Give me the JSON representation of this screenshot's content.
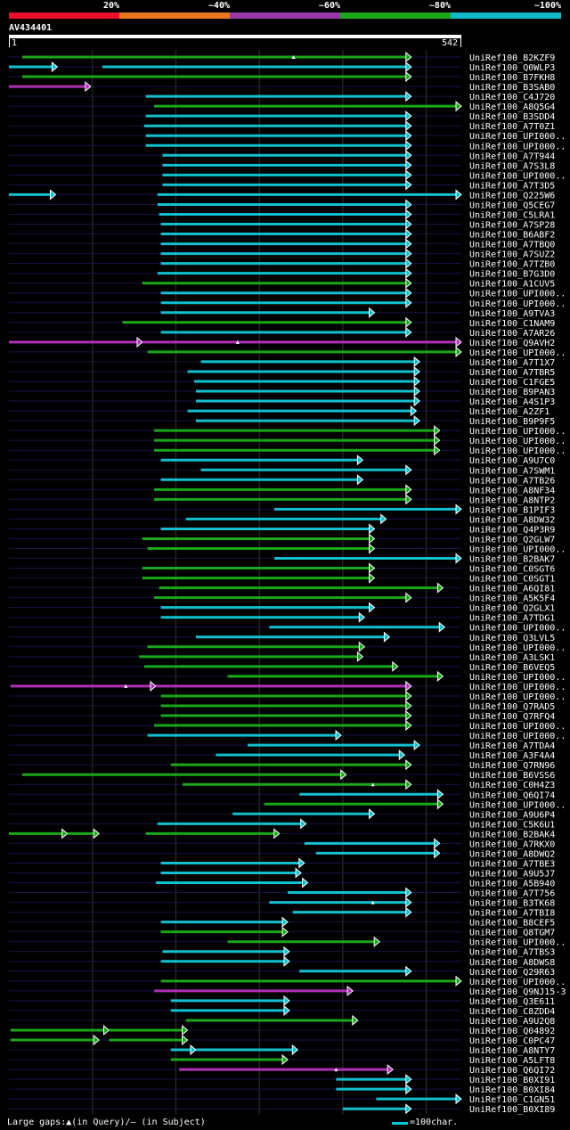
{
  "legend": {
    "labels": [
      "20%",
      "~40%",
      "~60%",
      "~80%",
      "~100%"
    ],
    "colors": [
      "#e8102a",
      "#e87820",
      "#9838a8",
      "#18a818",
      "#10b8c8"
    ]
  },
  "query": {
    "id": "AV434401",
    "start_label": "1",
    "end_label": "542"
  },
  "footer": {
    "gaps_text": "Large gaps:▲(in Query)/– (in Subject)",
    "scale_text": "=100char."
  },
  "chart_data": {
    "type": "alignment",
    "title": "AV434401",
    "query_length": 542,
    "identity_colors": {
      "magenta": "#b030b8",
      "green": "#18a818",
      "cyan": "#10c0d0"
    },
    "hits": [
      {
        "name": "UniRef100_B2KZF9",
        "color": "green",
        "segments": [
          [
            16,
            482
          ]
        ],
        "query_gaps": [
          341
        ]
      },
      {
        "name": "UniRef100_Q0WLP3",
        "color": "cyan",
        "segments": [
          [
            0,
            58
          ],
          [
            112,
            482
          ]
        ]
      },
      {
        "name": "UniRef100_B7FKH8",
        "color": "green",
        "segments": [
          [
            16,
            482
          ]
        ]
      },
      {
        "name": "UniRef100_B3SAB0",
        "color": "magenta",
        "segments": [
          [
            0,
            98
          ]
        ]
      },
      {
        "name": "UniRef100_C4J720",
        "color": "cyan",
        "segments": [
          [
            164,
            482
          ]
        ]
      },
      {
        "name": "UniRef100_A8Q5G4",
        "color": "green",
        "segments": [
          [
            174,
            542
          ]
        ]
      },
      {
        "name": "UniRef100_B3SDD4",
        "color": "cyan",
        "segments": [
          [
            164,
            482
          ]
        ]
      },
      {
        "name": "UniRef100_A7T0Z1",
        "color": "cyan",
        "segments": [
          [
            162,
            482
          ]
        ]
      },
      {
        "name": "UniRef100_UPI000..",
        "color": "cyan",
        "segments": [
          [
            164,
            482
          ]
        ]
      },
      {
        "name": "UniRef100_UPI000..",
        "color": "cyan",
        "segments": [
          [
            164,
            482
          ]
        ]
      },
      {
        "name": "UniRef100_A7T944",
        "color": "cyan",
        "segments": [
          [
            184,
            482
          ]
        ]
      },
      {
        "name": "UniRef100_A7S3L8",
        "color": "cyan",
        "segments": [
          [
            184,
            482
          ]
        ]
      },
      {
        "name": "UniRef100_UPI000..",
        "color": "cyan",
        "segments": [
          [
            184,
            482
          ]
        ]
      },
      {
        "name": "UniRef100_A7T3D5",
        "color": "cyan",
        "segments": [
          [
            184,
            482
          ]
        ]
      },
      {
        "name": "UniRef100_Q225W6",
        "color": "cyan",
        "segments": [
          [
            0,
            56
          ],
          [
            178,
            542
          ]
        ]
      },
      {
        "name": "UniRef100_Q5CEG7",
        "color": "cyan",
        "segments": [
          [
            178,
            482
          ]
        ]
      },
      {
        "name": "UniRef100_C5LRA1",
        "color": "cyan",
        "segments": [
          [
            180,
            482
          ]
        ]
      },
      {
        "name": "UniRef100_A7SP28",
        "color": "cyan",
        "segments": [
          [
            182,
            482
          ]
        ]
      },
      {
        "name": "UniRef100_B6ABF2",
        "color": "cyan",
        "segments": [
          [
            182,
            482
          ]
        ]
      },
      {
        "name": "UniRef100_A7TBQ0",
        "color": "cyan",
        "segments": [
          [
            182,
            482
          ]
        ]
      },
      {
        "name": "UniRef100_A7SUZ2",
        "color": "cyan",
        "segments": [
          [
            182,
            482
          ]
        ]
      },
      {
        "name": "UniRef100_A7TZB0",
        "color": "cyan",
        "segments": [
          [
            182,
            482
          ]
        ]
      },
      {
        "name": "UniRef100_B7G3D0",
        "color": "cyan",
        "segments": [
          [
            178,
            482
          ]
        ]
      },
      {
        "name": "UniRef100_A1CUV5",
        "color": "green",
        "segments": [
          [
            160,
            482
          ]
        ]
      },
      {
        "name": "UniRef100_UPI000..",
        "color": "cyan",
        "segments": [
          [
            182,
            482
          ]
        ]
      },
      {
        "name": "UniRef100_UPI000..",
        "color": "cyan",
        "segments": [
          [
            182,
            482
          ]
        ]
      },
      {
        "name": "UniRef100_A9TVA3",
        "color": "cyan",
        "segments": [
          [
            182,
            438
          ]
        ]
      },
      {
        "name": "UniRef100_C1NAM9",
        "color": "green",
        "segments": [
          [
            136,
            482
          ]
        ]
      },
      {
        "name": "UniRef100_A7AR26",
        "color": "cyan",
        "segments": [
          [
            182,
            482
          ]
        ]
      },
      {
        "name": "UniRef100_Q9AVH2",
        "color": "magenta",
        "segments": [
          [
            0,
            160
          ],
          [
            160,
            542
          ]
        ],
        "query_gaps": [
          274
        ]
      },
      {
        "name": "UniRef100_UPI000..",
        "color": "green",
        "segments": [
          [
            166,
            542
          ]
        ]
      },
      {
        "name": "UniRef100_A7T1X7",
        "color": "cyan",
        "segments": [
          [
            230,
            492
          ]
        ]
      },
      {
        "name": "UniRef100_A7TBR5",
        "color": "cyan",
        "segments": [
          [
            214,
            492
          ]
        ]
      },
      {
        "name": "UniRef100_C1FGE5",
        "color": "cyan",
        "segments": [
          [
            222,
            492
          ]
        ]
      },
      {
        "name": "UniRef100_B9PAN3",
        "color": "cyan",
        "segments": [
          [
            224,
            492
          ]
        ]
      },
      {
        "name": "UniRef100_A4S1P3",
        "color": "cyan",
        "segments": [
          [
            224,
            492
          ]
        ]
      },
      {
        "name": "UniRef100_A2ZF1",
        "color": "cyan",
        "segments": [
          [
            214,
            488
          ]
        ]
      },
      {
        "name": "UniRef100_B9P9F5",
        "color": "cyan",
        "segments": [
          [
            224,
            492
          ]
        ]
      },
      {
        "name": "UniRef100_UPI000..",
        "color": "green",
        "segments": [
          [
            174,
            516
          ]
        ]
      },
      {
        "name": "UniRef100_UPI000..",
        "color": "green",
        "segments": [
          [
            174,
            516
          ]
        ]
      },
      {
        "name": "UniRef100_UPI000..",
        "color": "green",
        "segments": [
          [
            174,
            516
          ]
        ]
      },
      {
        "name": "UniRef100_A9U7C0",
        "color": "cyan",
        "segments": [
          [
            182,
            424
          ]
        ]
      },
      {
        "name": "UniRef100_A7SWM1",
        "color": "cyan",
        "segments": [
          [
            230,
            482
          ]
        ]
      },
      {
        "name": "UniRef100_A7TB26",
        "color": "cyan",
        "segments": [
          [
            182,
            424
          ]
        ]
      },
      {
        "name": "UniRef100_A8NF34",
        "color": "green",
        "segments": [
          [
            174,
            482
          ]
        ]
      },
      {
        "name": "UniRef100_A8NTP2",
        "color": "green",
        "segments": [
          [
            174,
            482
          ]
        ]
      },
      {
        "name": "UniRef100_B1PIF3",
        "color": "cyan",
        "segments": [
          [
            318,
            542
          ]
        ]
      },
      {
        "name": "UniRef100_A8DW32",
        "color": "cyan",
        "segments": [
          [
            212,
            452
          ]
        ]
      },
      {
        "name": "UniRef100_Q4P3R9",
        "color": "cyan",
        "segments": [
          [
            182,
            438
          ]
        ]
      },
      {
        "name": "UniRef100_Q2GLW7",
        "color": "green",
        "segments": [
          [
            160,
            438
          ]
        ]
      },
      {
        "name": "UniRef100_UPI000..",
        "color": "green",
        "segments": [
          [
            166,
            438
          ]
        ]
      },
      {
        "name": "UniRef100_B2BAK7",
        "color": "cyan",
        "segments": [
          [
            318,
            542
          ]
        ]
      },
      {
        "name": "UniRef100_C0SGT6",
        "color": "green",
        "segments": [
          [
            160,
            438
          ]
        ]
      },
      {
        "name": "UniRef100_C0SGT1",
        "color": "green",
        "segments": [
          [
            160,
            438
          ]
        ]
      },
      {
        "name": "UniRef100_A6QI81",
        "color": "green",
        "segments": [
          [
            180,
            520
          ]
        ]
      },
      {
        "name": "UniRef100_A5K5F4",
        "color": "green",
        "segments": [
          [
            174,
            482
          ]
        ]
      },
      {
        "name": "UniRef100_Q2GLX1",
        "color": "cyan",
        "segments": [
          [
            182,
            438
          ]
        ]
      },
      {
        "name": "UniRef100_A7TDG1",
        "color": "cyan",
        "segments": [
          [
            182,
            426
          ]
        ]
      },
      {
        "name": "UniRef100_UPI000..",
        "color": "cyan",
        "segments": [
          [
            312,
            522
          ]
        ]
      },
      {
        "name": "UniRef100_Q3LVL5",
        "color": "cyan",
        "segments": [
          [
            224,
            456
          ]
        ]
      },
      {
        "name": "UniRef100_UPI000..",
        "color": "green",
        "segments": [
          [
            166,
            426
          ]
        ]
      },
      {
        "name": "UniRef100_A3LSK1",
        "color": "green",
        "segments": [
          [
            156,
            424
          ]
        ]
      },
      {
        "name": "UniRef100_B6VEQ5",
        "color": "green",
        "segments": [
          [
            162,
            466
          ]
        ]
      },
      {
        "name": "UniRef100_UPI000..",
        "color": "green",
        "segments": [
          [
            262,
            520
          ]
        ]
      },
      {
        "name": "UniRef100_UPI000..",
        "color": "magenta",
        "segments": [
          [
            2,
            176
          ],
          [
            176,
            482
          ]
        ],
        "query_gaps": [
          140
        ]
      },
      {
        "name": "UniRef100_UPI000..",
        "color": "green",
        "segments": [
          [
            182,
            482
          ]
        ]
      },
      {
        "name": "UniRef100_Q7RAD5",
        "color": "green",
        "segments": [
          [
            182,
            482
          ]
        ]
      },
      {
        "name": "UniRef100_Q7RFQ4",
        "color": "green",
        "segments": [
          [
            182,
            482
          ]
        ]
      },
      {
        "name": "UniRef100_UPI000..",
        "color": "green",
        "segments": [
          [
            174,
            482
          ]
        ]
      },
      {
        "name": "UniRef100_UPI000..",
        "color": "cyan",
        "segments": [
          [
            166,
            398
          ]
        ]
      },
      {
        "name": "UniRef100_A7TDA4",
        "color": "cyan",
        "segments": [
          [
            286,
            492
          ]
        ]
      },
      {
        "name": "UniRef100_A3F4A4",
        "color": "cyan",
        "segments": [
          [
            248,
            474
          ]
        ]
      },
      {
        "name": "UniRef100_Q7RN96",
        "color": "green",
        "segments": [
          [
            194,
            482
          ]
        ]
      },
      {
        "name": "UniRef100_B6VSS6",
        "color": "green",
        "segments": [
          [
            16,
            404
          ]
        ]
      },
      {
        "name": "UniRef100_C0H4Z3",
        "color": "green",
        "segments": [
          [
            208,
            482
          ]
        ],
        "query_gaps": [
          436
        ]
      },
      {
        "name": "UniRef100_Q6QI74",
        "color": "cyan",
        "segments": [
          [
            348,
            520
          ]
        ]
      },
      {
        "name": "UniRef100_UPI000..",
        "color": "green",
        "segments": [
          [
            306,
            520
          ]
        ]
      },
      {
        "name": "UniRef100_A9U6P4",
        "color": "cyan",
        "segments": [
          [
            268,
            438
          ]
        ]
      },
      {
        "name": "UniRef100_C5K6U1",
        "color": "cyan",
        "segments": [
          [
            178,
            356
          ]
        ]
      },
      {
        "name": "UniRef100_B2BAK4",
        "color": "green",
        "segments": [
          [
            0,
            70
          ],
          [
            70,
            108
          ],
          [
            164,
            324
          ]
        ]
      },
      {
        "name": "UniRef100_A7RKX0",
        "color": "cyan",
        "segments": [
          [
            354,
            516
          ]
        ]
      },
      {
        "name": "UniRef100_A8DWQ2",
        "color": "cyan",
        "segments": [
          [
            368,
            516
          ]
        ]
      },
      {
        "name": "UniRef100_A7TBE3",
        "color": "cyan",
        "segments": [
          [
            182,
            354
          ]
        ]
      },
      {
        "name": "UniRef100_A9U5J7",
        "color": "cyan",
        "segments": [
          [
            182,
            350
          ]
        ]
      },
      {
        "name": "UniRef100_A5B940",
        "color": "cyan",
        "segments": [
          [
            176,
            358
          ]
        ]
      },
      {
        "name": "UniRef100_A7T756",
        "color": "cyan",
        "segments": [
          [
            334,
            482
          ]
        ]
      },
      {
        "name": "UniRef100_B3TK68",
        "color": "cyan",
        "segments": [
          [
            312,
            482
          ]
        ],
        "query_gaps": [
          436
        ]
      },
      {
        "name": "UniRef100_A7TBI8",
        "color": "cyan",
        "segments": [
          [
            340,
            482
          ]
        ]
      },
      {
        "name": "UniRef100_B8CEF5",
        "color": "cyan",
        "segments": [
          [
            182,
            334
          ]
        ]
      },
      {
        "name": "UniRef100_Q8TGM7",
        "color": "green",
        "segments": [
          [
            182,
            334
          ]
        ]
      },
      {
        "name": "UniRef100_UPI000..",
        "color": "green",
        "segments": [
          [
            262,
            444
          ]
        ]
      },
      {
        "name": "UniRef100_A7TBS3",
        "color": "cyan",
        "segments": [
          [
            184,
            336
          ]
        ]
      },
      {
        "name": "UniRef100_A8DWS8",
        "color": "cyan",
        "segments": [
          [
            182,
            336
          ]
        ]
      },
      {
        "name": "UniRef100_Q29R63",
        "color": "cyan",
        "segments": [
          [
            348,
            482
          ]
        ]
      },
      {
        "name": "UniRef100_UPI000..",
        "color": "green",
        "segments": [
          [
            182,
            542
          ]
        ]
      },
      {
        "name": "UniRef100_Q9NJ15-3",
        "color": "magenta",
        "segments": [
          [
            174,
            412
          ]
        ]
      },
      {
        "name": "UniRef100_Q3E611",
        "color": "cyan",
        "segments": [
          [
            194,
            336
          ]
        ]
      },
      {
        "name": "UniRef100_C8ZDD4",
        "color": "cyan",
        "segments": [
          [
            194,
            336
          ]
        ]
      },
      {
        "name": "UniRef100_A9U2Q8",
        "color": "green",
        "segments": [
          [
            212,
            418
          ]
        ]
      },
      {
        "name": "UniRef100_Q04892",
        "color": "green",
        "segments": [
          [
            2,
            120
          ],
          [
            120,
            214
          ]
        ]
      },
      {
        "name": "UniRef100_C0PC47",
        "color": "green",
        "segments": [
          [
            2,
            108
          ],
          [
            120,
            214
          ]
        ]
      },
      {
        "name": "UniRef100_A8NTY7",
        "color": "cyan",
        "segments": [
          [
            194,
            224
          ],
          [
            224,
            346
          ]
        ]
      },
      {
        "name": "UniRef100_A5LFT8",
        "color": "green",
        "segments": [
          [
            194,
            334
          ]
        ]
      },
      {
        "name": "UniRef100_Q6QI72",
        "color": "magenta",
        "segments": [
          [
            204,
            460
          ]
        ],
        "query_gaps": [
          392
        ]
      },
      {
        "name": "UniRef100_B0XI91",
        "color": "cyan",
        "segments": [
          [
            392,
            482
          ]
        ]
      },
      {
        "name": "UniRef100_B0XI84",
        "color": "cyan",
        "segments": [
          [
            392,
            482
          ]
        ]
      },
      {
        "name": "UniRef100_C1GN51",
        "color": "cyan",
        "segments": [
          [
            440,
            542
          ]
        ]
      },
      {
        "name": "UniRef100_B0XI89",
        "color": "cyan",
        "segments": [
          [
            400,
            482
          ]
        ]
      }
    ]
  }
}
